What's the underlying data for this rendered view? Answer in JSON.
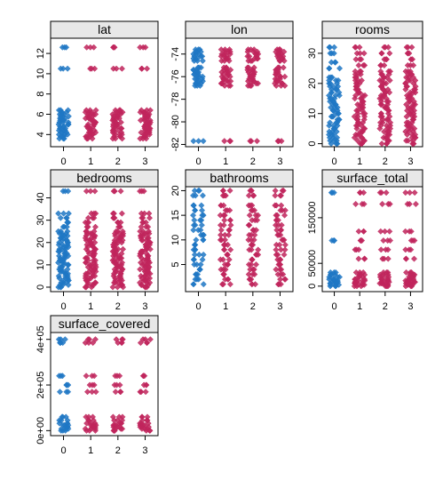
{
  "chart_data": {
    "type": "scatter",
    "x_ticks": [
      "0",
      "1",
      "2",
      "3"
    ],
    "colors": {
      "group0": "#1f77c4",
      "group_other": "#c0245c",
      "strip_bg": "#e8e8e8"
    },
    "panels": [
      {
        "title": "lat",
        "ylim": [
          2.8,
          13.5
        ],
        "yticks": [
          {
            "v": 4,
            "label": "4"
          },
          {
            "v": 6,
            "label": "6"
          },
          {
            "v": 8,
            "label": "8"
          },
          {
            "v": 10,
            "label": "10"
          },
          {
            "v": 12,
            "label": "12"
          }
        ],
        "series": [
          {
            "x": 0,
            "values": [
              3.6,
              3.8,
              4.0,
              4.2,
              4.4,
              4.6,
              4.8,
              5.0,
              5.2,
              5.4,
              5.6,
              5.8,
              6.0,
              6.2,
              6.4,
              10.5,
              12.6
            ]
          },
          {
            "x": 1,
            "values": [
              3.6,
              3.8,
              4.0,
              4.2,
              4.4,
              4.6,
              4.8,
              5.0,
              5.2,
              5.4,
              5.6,
              5.8,
              6.0,
              6.2,
              6.4,
              10.5,
              12.6
            ]
          },
          {
            "x": 2,
            "values": [
              3.6,
              3.8,
              4.0,
              4.2,
              4.4,
              4.6,
              4.8,
              5.0,
              5.2,
              5.4,
              5.6,
              5.8,
              6.0,
              6.2,
              6.4,
              10.5,
              12.6
            ]
          },
          {
            "x": 3,
            "values": [
              3.6,
              3.8,
              4.0,
              4.2,
              4.4,
              4.6,
              4.8,
              5.0,
              5.2,
              5.4,
              5.6,
              5.8,
              6.0,
              6.2,
              6.4,
              10.5,
              12.6
            ]
          }
        ]
      },
      {
        "title": "lon",
        "ylim": [
          -82.2,
          -72.6
        ],
        "yticks": [
          {
            "v": -74,
            "label": "-74"
          },
          {
            "v": -76,
            "label": "-76"
          },
          {
            "v": -78,
            "label": "-78"
          },
          {
            "v": -80,
            "label": "-80"
          },
          {
            "v": -82,
            "label": "-82"
          }
        ],
        "series": [
          {
            "x": 0,
            "values": [
              -81.7,
              -76.8,
              -76.6,
              -76.4,
              -76.2,
              -76.0,
              -75.8,
              -75.6,
              -75.4,
              -75.2,
              -74.6,
              -74.4,
              -74.2,
              -74.0,
              -73.8,
              -73.6
            ]
          },
          {
            "x": 1,
            "values": [
              -81.7,
              -76.8,
              -76.6,
              -76.4,
              -76.2,
              -76.0,
              -75.8,
              -75.6,
              -75.4,
              -75.2,
              -74.6,
              -74.4,
              -74.2,
              -74.0,
              -73.8,
              -73.6
            ]
          },
          {
            "x": 2,
            "values": [
              -81.7,
              -76.8,
              -76.6,
              -76.4,
              -76.2,
              -76.0,
              -75.8,
              -75.6,
              -75.4,
              -75.2,
              -74.6,
              -74.4,
              -74.2,
              -74.0,
              -73.8,
              -73.6
            ]
          },
          {
            "x": 3,
            "values": [
              -81.7,
              -76.8,
              -76.6,
              -76.4,
              -76.2,
              -76.0,
              -75.8,
              -75.6,
              -75.4,
              -75.2,
              -74.6,
              -74.4,
              -74.2,
              -74.0,
              -73.8,
              -73.6
            ]
          }
        ]
      },
      {
        "title": "rooms",
        "ylim": [
          -1,
          35
        ],
        "yticks": [
          {
            "v": 0,
            "label": "0"
          },
          {
            "v": 10,
            "label": "10"
          },
          {
            "v": 20,
            "label": "20"
          },
          {
            "v": 30,
            "label": "30"
          }
        ],
        "series": [
          {
            "x": 0,
            "values": [
              0,
              1,
              2,
              3,
              4,
              5,
              6,
              7,
              8,
              9,
              10,
              11,
              12,
              13,
              14,
              15,
              16,
              17,
              18,
              19,
              20,
              21,
              22,
              25,
              27,
              30,
              32
            ]
          },
          {
            "x": 1,
            "values": [
              0,
              1,
              2,
              3,
              4,
              5,
              6,
              7,
              8,
              9,
              10,
              11,
              12,
              13,
              14,
              15,
              16,
              17,
              18,
              19,
              20,
              21,
              22,
              23,
              24,
              26,
              28,
              30,
              32
            ]
          },
          {
            "x": 2,
            "values": [
              0,
              1,
              2,
              3,
              4,
              5,
              6,
              7,
              8,
              9,
              10,
              11,
              12,
              13,
              14,
              15,
              16,
              17,
              18,
              19,
              20,
              21,
              22,
              23,
              24,
              26,
              28,
              30,
              32
            ]
          },
          {
            "x": 3,
            "values": [
              0,
              1,
              2,
              3,
              4,
              5,
              6,
              7,
              8,
              9,
              10,
              11,
              12,
              13,
              14,
              15,
              16,
              17,
              18,
              19,
              20,
              21,
              22,
              23,
              24,
              26,
              28,
              30,
              32
            ]
          }
        ]
      },
      {
        "title": "bedrooms",
        "ylim": [
          -2,
          45
        ],
        "yticks": [
          {
            "v": 0,
            "label": "0"
          },
          {
            "v": 10,
            "label": "10"
          },
          {
            "v": 20,
            "label": "20"
          },
          {
            "v": 30,
            "label": "30"
          },
          {
            "v": 40,
            "label": "40"
          }
        ],
        "series": [
          {
            "x": 0,
            "values": [
              0,
              1,
              2,
              3,
              4,
              5,
              6,
              7,
              8,
              9,
              10,
              11,
              12,
              13,
              14,
              15,
              16,
              17,
              18,
              19,
              20,
              21,
              22,
              23,
              24,
              25,
              27,
              29,
              31,
              33,
              43
            ]
          },
          {
            "x": 1,
            "values": [
              0,
              1,
              2,
              3,
              4,
              5,
              6,
              7,
              8,
              9,
              10,
              11,
              12,
              13,
              14,
              15,
              16,
              17,
              18,
              19,
              20,
              21,
              22,
              23,
              24,
              25,
              27,
              29,
              31,
              33,
              43
            ]
          },
          {
            "x": 2,
            "values": [
              0,
              1,
              2,
              3,
              4,
              5,
              6,
              7,
              8,
              9,
              10,
              11,
              12,
              13,
              14,
              15,
              16,
              17,
              18,
              19,
              20,
              21,
              22,
              23,
              24,
              25,
              27,
              29,
              31,
              33,
              43
            ]
          },
          {
            "x": 3,
            "values": [
              0,
              1,
              2,
              3,
              4,
              5,
              6,
              7,
              8,
              9,
              10,
              11,
              12,
              13,
              14,
              15,
              16,
              17,
              18,
              19,
              20,
              21,
              22,
              23,
              24,
              25,
              27,
              29,
              31,
              33,
              43
            ]
          }
        ]
      },
      {
        "title": "bathrooms",
        "ylim": [
          -0.5,
          20.8
        ],
        "yticks": [
          {
            "v": 5,
            "label": "5"
          },
          {
            "v": 10,
            "label": "10"
          },
          {
            "v": 15,
            "label": "15"
          },
          {
            "v": 20,
            "label": "20"
          }
        ],
        "series": [
          {
            "x": 0,
            "values": [
              1,
              2,
              3,
              4,
              5,
              6,
              7,
              8,
              9,
              10,
              11,
              12,
              13,
              14,
              15,
              16,
              17,
              19,
              20
            ]
          },
          {
            "x": 1,
            "values": [
              1,
              2,
              3,
              4,
              5,
              6,
              7,
              8,
              9,
              10,
              11,
              12,
              13,
              14,
              15,
              16,
              17,
              19,
              20
            ]
          },
          {
            "x": 2,
            "values": [
              1,
              2,
              3,
              4,
              5,
              6,
              7,
              8,
              9,
              10,
              11,
              12,
              13,
              14,
              15,
              16,
              17,
              19,
              20
            ]
          },
          {
            "x": 3,
            "values": [
              1,
              2,
              3,
              4,
              5,
              6,
              7,
              8,
              9,
              10,
              11,
              12,
              13,
              14,
              15,
              16,
              17,
              19,
              20
            ]
          }
        ]
      },
      {
        "title": "surface_total",
        "ylim": [
          -12000,
          218000
        ],
        "yticks": [
          {
            "v": 0,
            "label": "0"
          },
          {
            "v": 50000,
            "label": "50000"
          },
          {
            "v": 150000,
            "label": "150000"
          }
        ],
        "series": [
          {
            "x": 0,
            "values": [
              0,
              3000,
              6000,
              9000,
              12000,
              15000,
              20000,
              25000,
              30000,
              100000,
              205000
            ]
          },
          {
            "x": 1,
            "values": [
              0,
              3000,
              6000,
              9000,
              12000,
              15000,
              20000,
              25000,
              30000,
              60000,
              80000,
              100000,
              120000,
              180000,
              205000
            ]
          },
          {
            "x": 2,
            "values": [
              0,
              3000,
              6000,
              9000,
              12000,
              15000,
              20000,
              25000,
              30000,
              60000,
              80000,
              100000,
              120000,
              180000,
              205000
            ]
          },
          {
            "x": 3,
            "values": [
              0,
              3000,
              6000,
              9000,
              12000,
              15000,
              20000,
              25000,
              30000,
              60000,
              80000,
              100000,
              120000,
              180000,
              205000
            ]
          }
        ]
      },
      {
        "title": "surface_covered",
        "ylim": [
          -22000,
          430000
        ],
        "yticks": [
          {
            "v": 0,
            "label": "0e+00"
          },
          {
            "v": 200000,
            "label": "2e+05"
          },
          {
            "v": 400000,
            "label": "4e+05"
          }
        ],
        "series": [
          {
            "x": 0,
            "values": [
              0,
              8000,
              16000,
              24000,
              32000,
              45000,
              60000,
              170000,
              200000,
              240000,
              385000,
              400000
            ]
          },
          {
            "x": 1,
            "values": [
              0,
              8000,
              16000,
              24000,
              32000,
              45000,
              60000,
              170000,
              200000,
              240000,
              385000,
              400000
            ]
          },
          {
            "x": 2,
            "values": [
              0,
              8000,
              16000,
              24000,
              32000,
              45000,
              60000,
              170000,
              200000,
              240000,
              385000,
              400000
            ]
          },
          {
            "x": 3,
            "values": [
              0,
              8000,
              16000,
              24000,
              32000,
              45000,
              60000,
              170000,
              200000,
              240000,
              385000,
              400000
            ]
          }
        ]
      }
    ]
  }
}
